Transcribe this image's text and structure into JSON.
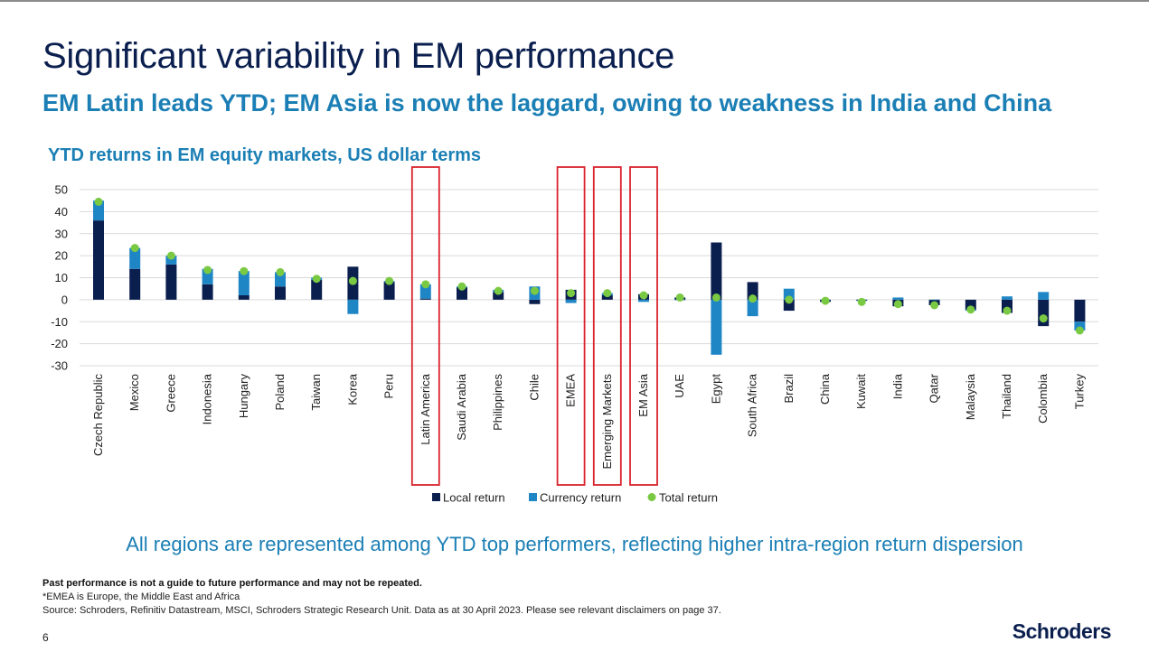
{
  "slide": {
    "title": "Significant variability in EM performance",
    "subtitle": "EM Latin leads YTD; EM Asia is now the laggard, owing to weakness in India and China",
    "tagline": "All regions are represented among YTD top performers, reflecting higher intra-region return dispersion",
    "disclaimer_bold": "Past performance is not a guide to future performance and may not be repeated.",
    "footnote": "*EMEA is Europe, the Middle East and Africa",
    "source": "Source: Schroders, Refinitiv Datastream, MSCI, Schroders Strategic Research Unit. Data as at 30 April 2023. Please see relevant disclaimers on page 37.",
    "page_number": "6",
    "logo": "Schroders"
  },
  "colors": {
    "title": "#0b1f4f",
    "accent": "#1b7fb5",
    "local": "#0b1f4f",
    "currency": "#1f86c6",
    "total": "#7ac943",
    "highlight_box": "#d9232d",
    "grid": "#d9d9d9"
  },
  "chart_data": {
    "type": "bar",
    "stacked": true,
    "title": "YTD returns in EM equity markets, US dollar terms",
    "xlabel": "",
    "ylabel": "",
    "ylim": [
      -30,
      50
    ],
    "yticks": [
      50,
      40,
      30,
      20,
      10,
      0,
      -10,
      -20,
      -30
    ],
    "grid": true,
    "legend_position": "bottom",
    "categories": [
      "Czech Republic",
      "Mexico",
      "Greece",
      "Indonesia",
      "Hungary",
      "Poland",
      "Taiwan",
      "Korea",
      "Peru",
      "Latin America",
      "Saudi Arabia",
      "Philippines",
      "Chile",
      "EMEA",
      "Emerging Markets",
      "EM Asia",
      "UAE",
      "Egypt",
      "South Africa",
      "Brazil",
      "China",
      "Kuwait",
      "India",
      "Qatar",
      "Malaysia",
      "Thailand",
      "Colombia",
      "Turkey"
    ],
    "highlighted": [
      "Latin America",
      "EMEA",
      "Emerging Markets",
      "EM Asia"
    ],
    "series": [
      {
        "name": "Local return",
        "kind": "bar",
        "values": [
          36,
          14,
          16,
          7,
          2,
          6,
          9,
          15,
          8,
          0.5,
          5.5,
          3.5,
          -2,
          4.5,
          2,
          2.5,
          1,
          26,
          8,
          -5,
          -1,
          -0.5,
          -3,
          -2.5,
          -4.5,
          -6,
          -12,
          -10
        ]
      },
      {
        "name": "Currency return",
        "kind": "bar",
        "values": [
          9,
          9.5,
          4,
          7,
          11,
          6.5,
          1,
          -6.5,
          0.5,
          6.5,
          0.5,
          1,
          6,
          -1.5,
          1,
          -1,
          0,
          -25,
          -7.5,
          5,
          0,
          0,
          1,
          0,
          -0.5,
          1.5,
          3.5,
          -4
        ]
      },
      {
        "name": "Total return",
        "kind": "point",
        "values": [
          44.5,
          23.5,
          20,
          13.5,
          13,
          12.5,
          9.5,
          8.5,
          8.5,
          7,
          6,
          4,
          4,
          3,
          3,
          2,
          1,
          1,
          0.5,
          0,
          -0.5,
          -1,
          -2,
          -2.5,
          -4.5,
          -5,
          -8.5,
          -14
        ]
      }
    ]
  }
}
